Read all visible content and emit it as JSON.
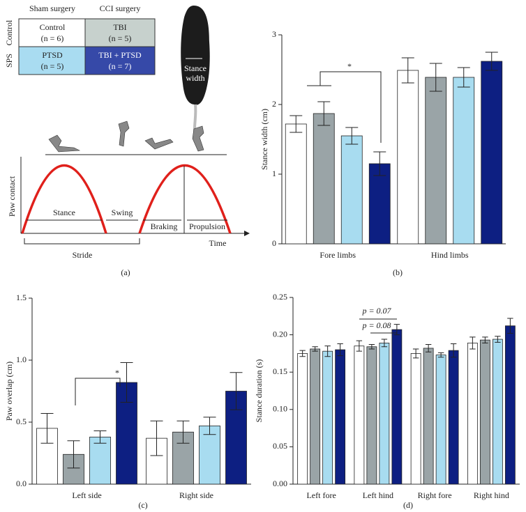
{
  "panel_a": {
    "table": {
      "column_headers": [
        "Sham surgery",
        "CCI surgery"
      ],
      "row_headers": [
        "Control",
        "SPS"
      ],
      "cells": [
        [
          {
            "label": "Control",
            "n": "(n = 6)"
          },
          {
            "label": "TBI",
            "n": "(n = 5)"
          }
        ],
        [
          {
            "label": "PTSD",
            "n": "(n = 5)"
          },
          {
            "label": "TBI + PTSD",
            "n": "(n = 7)"
          }
        ]
      ]
    },
    "photo_label": [
      "Stance",
      "width"
    ],
    "gait": {
      "y_label": "Paw contact",
      "x_label": "Time",
      "phases": [
        "Stance",
        "Swing",
        "Braking",
        "Propulsion"
      ],
      "cycle": "Stride"
    }
  },
  "panel_labels": [
    "(a)",
    "(b)",
    "(c)",
    "(d)"
  ],
  "chart_data": [
    {
      "type": "bar",
      "y_label": "Stance width (cm)",
      "categories": [
        "Fore limbs",
        "Hind limbs"
      ],
      "series": [
        {
          "color": "#ffffff",
          "values": [
            1.72,
            2.49
          ],
          "errors": [
            0.12,
            0.18
          ]
        },
        {
          "color": "#9aa4a7",
          "values": [
            1.87,
            2.39
          ],
          "errors": [
            0.17,
            0.2
          ]
        },
        {
          "color": "#a8dcf0",
          "values": [
            1.55,
            2.39
          ],
          "errors": [
            0.12,
            0.14
          ]
        },
        {
          "color": "#0d1f82",
          "values": [
            1.15,
            2.62
          ],
          "errors": [
            0.17,
            0.13
          ]
        }
      ],
      "ylim": [
        0,
        3
      ],
      "yticks": [
        0,
        1,
        2,
        3
      ],
      "annotations": [
        "*"
      ]
    },
    {
      "type": "bar",
      "y_label": "Paw overlap (cm)",
      "categories": [
        "Left side",
        "Right side"
      ],
      "series": [
        {
          "color": "#ffffff",
          "values": [
            0.45,
            0.37
          ],
          "errors": [
            0.12,
            0.14
          ]
        },
        {
          "color": "#9aa4a7",
          "values": [
            0.24,
            0.42
          ],
          "errors": [
            0.11,
            0.09
          ]
        },
        {
          "color": "#a8dcf0",
          "values": [
            0.38,
            0.47
          ],
          "errors": [
            0.05,
            0.07
          ]
        },
        {
          "color": "#0d1f82",
          "values": [
            0.82,
            0.75
          ],
          "errors": [
            0.16,
            0.15
          ]
        }
      ],
      "ylim": [
        0,
        1.5
      ],
      "yticks": [
        {
          "value": 0,
          "label": "0.0"
        },
        0.5,
        {
          "value": 1,
          "label": "1.0"
        },
        1.5
      ],
      "annotations": [
        "*"
      ]
    },
    {
      "type": "bar",
      "y_label": "Stance duration (s)",
      "categories": [
        "Left fore",
        "Left hind",
        "Right fore",
        "Right hind"
      ],
      "series": [
        {
          "color": "#ffffff",
          "values": [
            0.175,
            0.185,
            0.175,
            0.189
          ],
          "errors": [
            0.004,
            0.007,
            0.006,
            0.008
          ]
        },
        {
          "color": "#9aa4a7",
          "values": [
            0.181,
            0.184,
            0.182,
            0.193
          ],
          "errors": [
            0.003,
            0.003,
            0.005,
            0.004
          ]
        },
        {
          "color": "#a8dcf0",
          "values": [
            0.178,
            0.189,
            0.173,
            0.194
          ],
          "errors": [
            0.007,
            0.005,
            0.003,
            0.004
          ]
        },
        {
          "color": "#0d1f82",
          "values": [
            0.18,
            0.207,
            0.179,
            0.212
          ],
          "errors": [
            0.008,
            0.007,
            0.009,
            0.01
          ]
        }
      ],
      "ylim": [
        0,
        0.25
      ],
      "yticks": [
        {
          "value": 0,
          "label": "0.00"
        },
        0.05,
        {
          "value": 0.1,
          "label": "0.10"
        },
        0.15,
        {
          "value": 0.2,
          "label": "0.20"
        },
        0.25
      ],
      "annotations": [
        "p = 0.07",
        "p = 0.08"
      ]
    }
  ]
}
